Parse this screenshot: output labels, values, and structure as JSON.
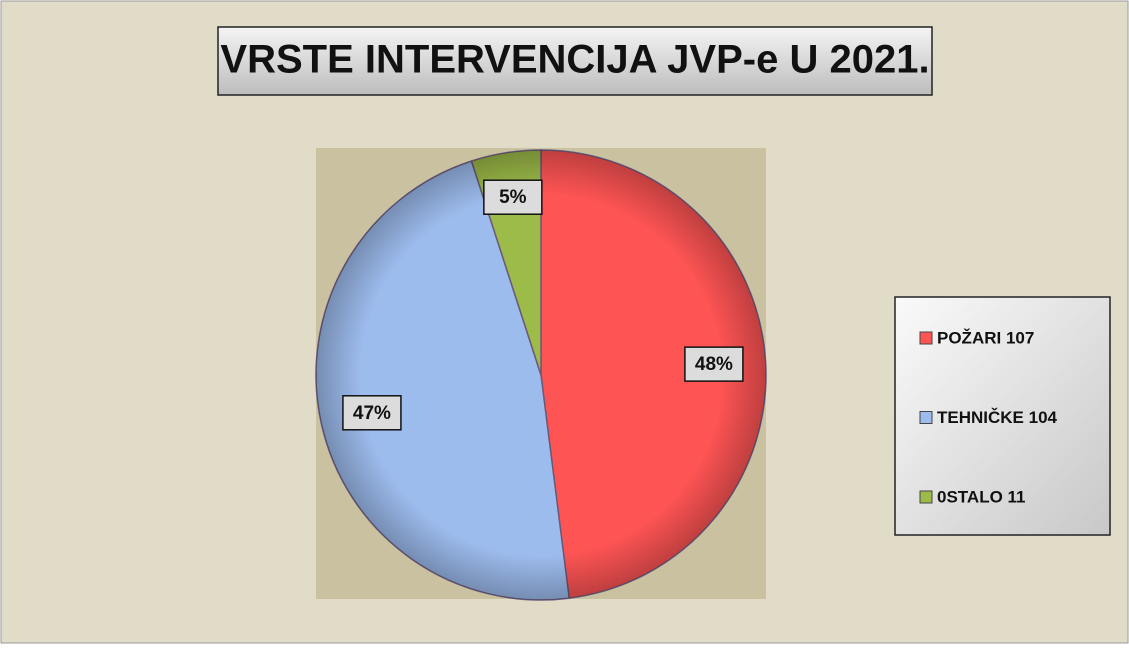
{
  "chart_data": {
    "type": "pie",
    "title": "VRSTE INTERVENCIJA JVP-e U 2021.",
    "categories": [
      "POŽARI 107",
      "TEHNIČKE 104",
      "0STALO 11"
    ],
    "values": [
      48,
      47,
      5
    ],
    "value_labels": [
      "48%",
      "47%",
      "5%"
    ],
    "colors": [
      "#ff5454",
      "#9dbcee",
      "#9cbb48"
    ],
    "legend": "right"
  }
}
